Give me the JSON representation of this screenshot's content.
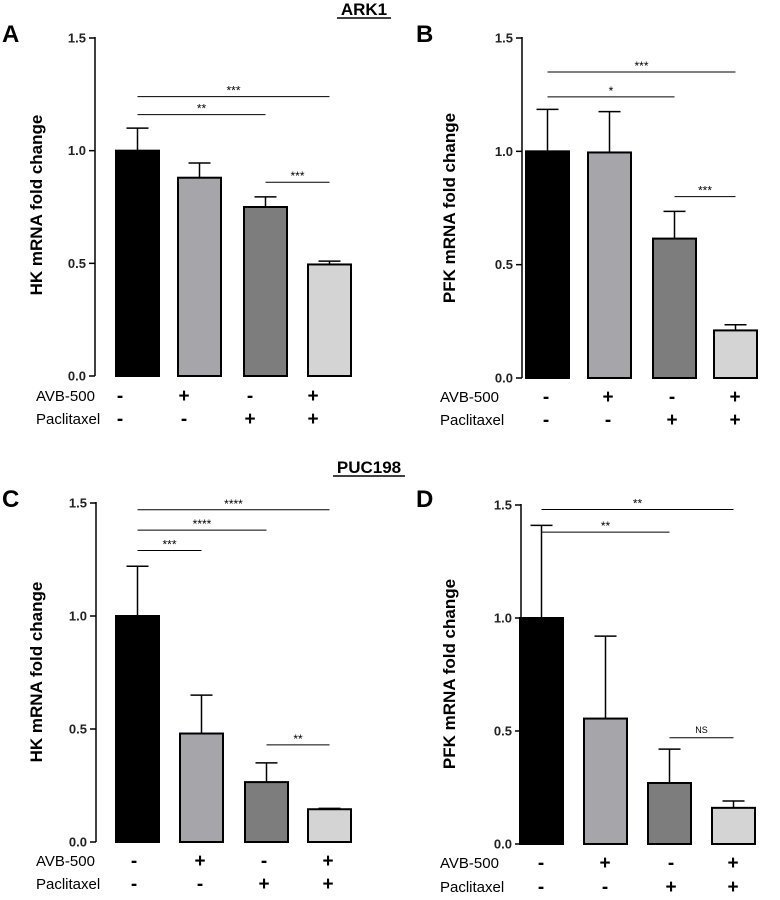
{
  "headers": {
    "top": "ARK1",
    "bottom": "PUC198"
  },
  "colors": [
    "#000000",
    "#a6a6aa",
    "#7d7d7d",
    "#d4d4d4"
  ],
  "chart_data": [
    {
      "type": "bar",
      "panel": "A",
      "ylabel": "HK mRNA fold change",
      "ylim": [
        0,
        1.5
      ],
      "yticks": [
        "0.0",
        "0.5",
        "1.0",
        "1.5"
      ],
      "values": [
        1.0,
        0.88,
        0.75,
        0.495
      ],
      "errors": [
        0.1,
        0.065,
        0.045,
        0.015
      ],
      "significance": [
        {
          "from": 0,
          "to": 2,
          "label": "**",
          "y": 1.16
        },
        {
          "from": 0,
          "to": 3,
          "label": "***",
          "y": 1.24
        },
        {
          "from": 2,
          "to": 3,
          "label": "***",
          "y": 0.86
        }
      ]
    },
    {
      "type": "bar",
      "panel": "B",
      "ylabel": "PFK mRNA fold change",
      "ylim": [
        0,
        1.5
      ],
      "yticks": [
        "0.0",
        "0.5",
        "1.0",
        "1.5"
      ],
      "values": [
        1.0,
        0.995,
        0.615,
        0.21
      ],
      "errors": [
        0.185,
        0.18,
        0.12,
        0.025
      ],
      "significance": [
        {
          "from": 0,
          "to": 2,
          "label": "*",
          "y": 1.24
        },
        {
          "from": 0,
          "to": 3,
          "label": "***",
          "y": 1.35
        },
        {
          "from": 2,
          "to": 3,
          "label": "***",
          "y": 0.8
        }
      ]
    },
    {
      "type": "bar",
      "panel": "C",
      "ylabel": "HK mRNA fold change",
      "ylim": [
        0,
        1.5
      ],
      "yticks": [
        "0.0",
        "0.5",
        "1.0",
        "1.5"
      ],
      "values": [
        1.0,
        0.48,
        0.265,
        0.145
      ],
      "errors": [
        0.22,
        0.17,
        0.085,
        0.004
      ],
      "significance": [
        {
          "from": 0,
          "to": 1,
          "label": "***",
          "y": 1.29
        },
        {
          "from": 0,
          "to": 2,
          "label": "****",
          "y": 1.38
        },
        {
          "from": 0,
          "to": 3,
          "label": "****",
          "y": 1.47
        },
        {
          "from": 2,
          "to": 3,
          "label": "**",
          "y": 0.43
        }
      ]
    },
    {
      "type": "bar",
      "panel": "D",
      "ylabel": "PFK mRNA fold change",
      "ylim": [
        0,
        1.5
      ],
      "yticks": [
        "0.0",
        "0.5",
        "1.0",
        "1.5"
      ],
      "values": [
        1.0,
        0.555,
        0.27,
        0.16
      ],
      "errors": [
        0.41,
        0.365,
        0.15,
        0.03
      ],
      "significance": [
        {
          "from": 0,
          "to": 2,
          "label": "**",
          "y": 1.38
        },
        {
          "from": 0,
          "to": 3,
          "label": "**",
          "y": 1.48
        },
        {
          "from": 2,
          "to": 3,
          "label": "NS",
          "y": 0.47
        }
      ]
    }
  ],
  "treatments": [
    {
      "name": "AVB-500",
      "signs": [
        "-",
        "+",
        "-",
        "+"
      ]
    },
    {
      "name": "Paclitaxel",
      "signs": [
        "-",
        "-",
        "+",
        "+"
      ]
    }
  ]
}
